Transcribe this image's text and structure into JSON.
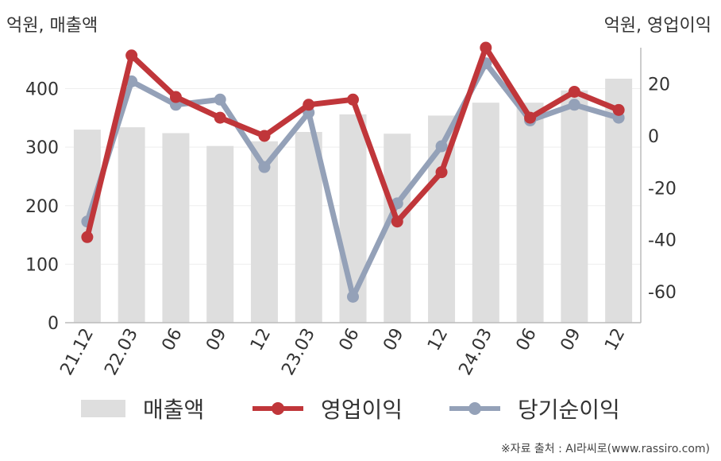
{
  "units": {
    "left": "억원, 매출액",
    "right": "억원, 영업이익"
  },
  "source": "※자료 출처 : AI라씨로(www.rassiro.com)",
  "colors": {
    "bar": "#dedede",
    "operating": "#c0363a",
    "net": "#94a1b8",
    "axis": "#bbbbbb",
    "grid": "#eeeeee"
  },
  "chart_data": {
    "type": "bar+line",
    "categories": [
      "21.12",
      "22.03",
      "06",
      "09",
      "12",
      "23.03",
      "06",
      "09",
      "12",
      "24.03",
      "06",
      "09",
      "12"
    ],
    "y_left": {
      "label": "억원, 매출액",
      "range": [
        0,
        470
      ],
      "ticks": [
        0,
        100,
        200,
        300,
        400
      ]
    },
    "y_right": {
      "label": "억원, 영업이익",
      "range": [
        -72,
        34
      ],
      "ticks": [
        -60,
        -40,
        -20,
        0,
        20
      ]
    },
    "series": [
      {
        "name": "매출액",
        "type": "bar",
        "axis": "left",
        "values": [
          330,
          334,
          324,
          302,
          310,
          326,
          356,
          323,
          354,
          376,
          376,
          397,
          417
        ]
      },
      {
        "name": "영업이익",
        "type": "line",
        "axis": "right",
        "values": [
          -39,
          31,
          15,
          7,
          0,
          12,
          14,
          -33,
          -14,
          34,
          7,
          17,
          10
        ]
      },
      {
        "name": "당기순이익",
        "type": "line",
        "axis": "right",
        "values": [
          -33,
          21,
          12,
          14,
          -12,
          9,
          -62,
          -26,
          -4,
          28,
          6,
          12,
          7
        ]
      }
    ],
    "legend_position": "bottom",
    "grid": true
  }
}
